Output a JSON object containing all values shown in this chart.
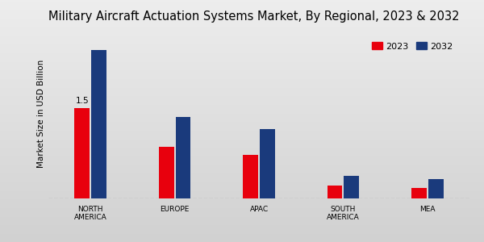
{
  "title": "Military Aircraft Actuation Systems Market, By Regional, 2023 & 2032",
  "categories": [
    "NORTH\nAMERICA",
    "EUROPE",
    "APAC",
    "SOUTH\nAMERICA",
    "MEA"
  ],
  "values_2023": [
    1.5,
    0.85,
    0.72,
    0.22,
    0.18
  ],
  "values_2032": [
    2.45,
    1.35,
    1.15,
    0.38,
    0.32
  ],
  "color_2023": "#e8000d",
  "color_2032": "#1a3a7c",
  "ylabel": "Market Size in USD Billion",
  "annotation_text": "1.5",
  "bg_color_top": "#e0e0e0",
  "bg_color_bottom": "#c8c8c8",
  "legend_labels": [
    "2023",
    "2032"
  ],
  "bar_width": 0.18,
  "ylim": [
    0,
    2.8
  ],
  "title_fontsize": 10.5,
  "axis_label_fontsize": 7.5,
  "tick_fontsize": 6.5,
  "bottom_bar_color": "#cc0000",
  "legend_fontsize": 8.0
}
